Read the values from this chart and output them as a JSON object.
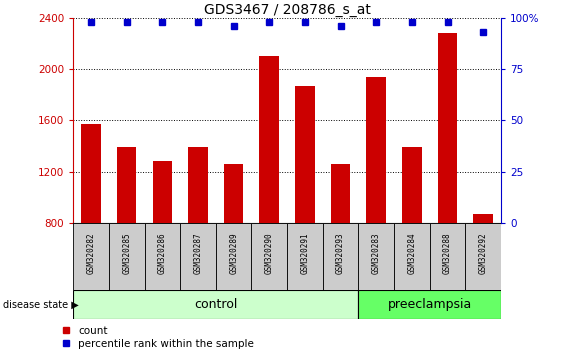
{
  "title": "GDS3467 / 208786_s_at",
  "samples": [
    "GSM320282",
    "GSM320285",
    "GSM320286",
    "GSM320287",
    "GSM320289",
    "GSM320290",
    "GSM320291",
    "GSM320293",
    "GSM320283",
    "GSM320284",
    "GSM320288",
    "GSM320292"
  ],
  "counts": [
    1570,
    1390,
    1280,
    1390,
    1260,
    2100,
    1870,
    1260,
    1940,
    1390,
    2280,
    870
  ],
  "percentile_ranks": [
    98,
    98,
    98,
    98,
    96,
    98,
    98,
    96,
    98,
    98,
    98,
    93
  ],
  "ylim_left": [
    800,
    2400
  ],
  "ylim_right": [
    0,
    100
  ],
  "yticks_left": [
    800,
    1200,
    1600,
    2000,
    2400
  ],
  "yticks_right": [
    0,
    25,
    50,
    75,
    100
  ],
  "ytick_labels_right": [
    "0",
    "25",
    "50",
    "75",
    "100%"
  ],
  "bar_color": "#cc0000",
  "marker_color": "#0000cc",
  "n_control": 8,
  "n_preeclampsia": 4,
  "control_label": "control",
  "preeclampsia_label": "preeclampsia",
  "disease_state_label": "disease state",
  "legend_count_label": "count",
  "legend_percentile_label": "percentile rank within the sample",
  "tick_label_color_left": "#cc0000",
  "tick_label_color_right": "#0000cc",
  "control_bg": "#ccffcc",
  "preeclampsia_bg": "#66ff66",
  "sample_bg": "#cccccc"
}
